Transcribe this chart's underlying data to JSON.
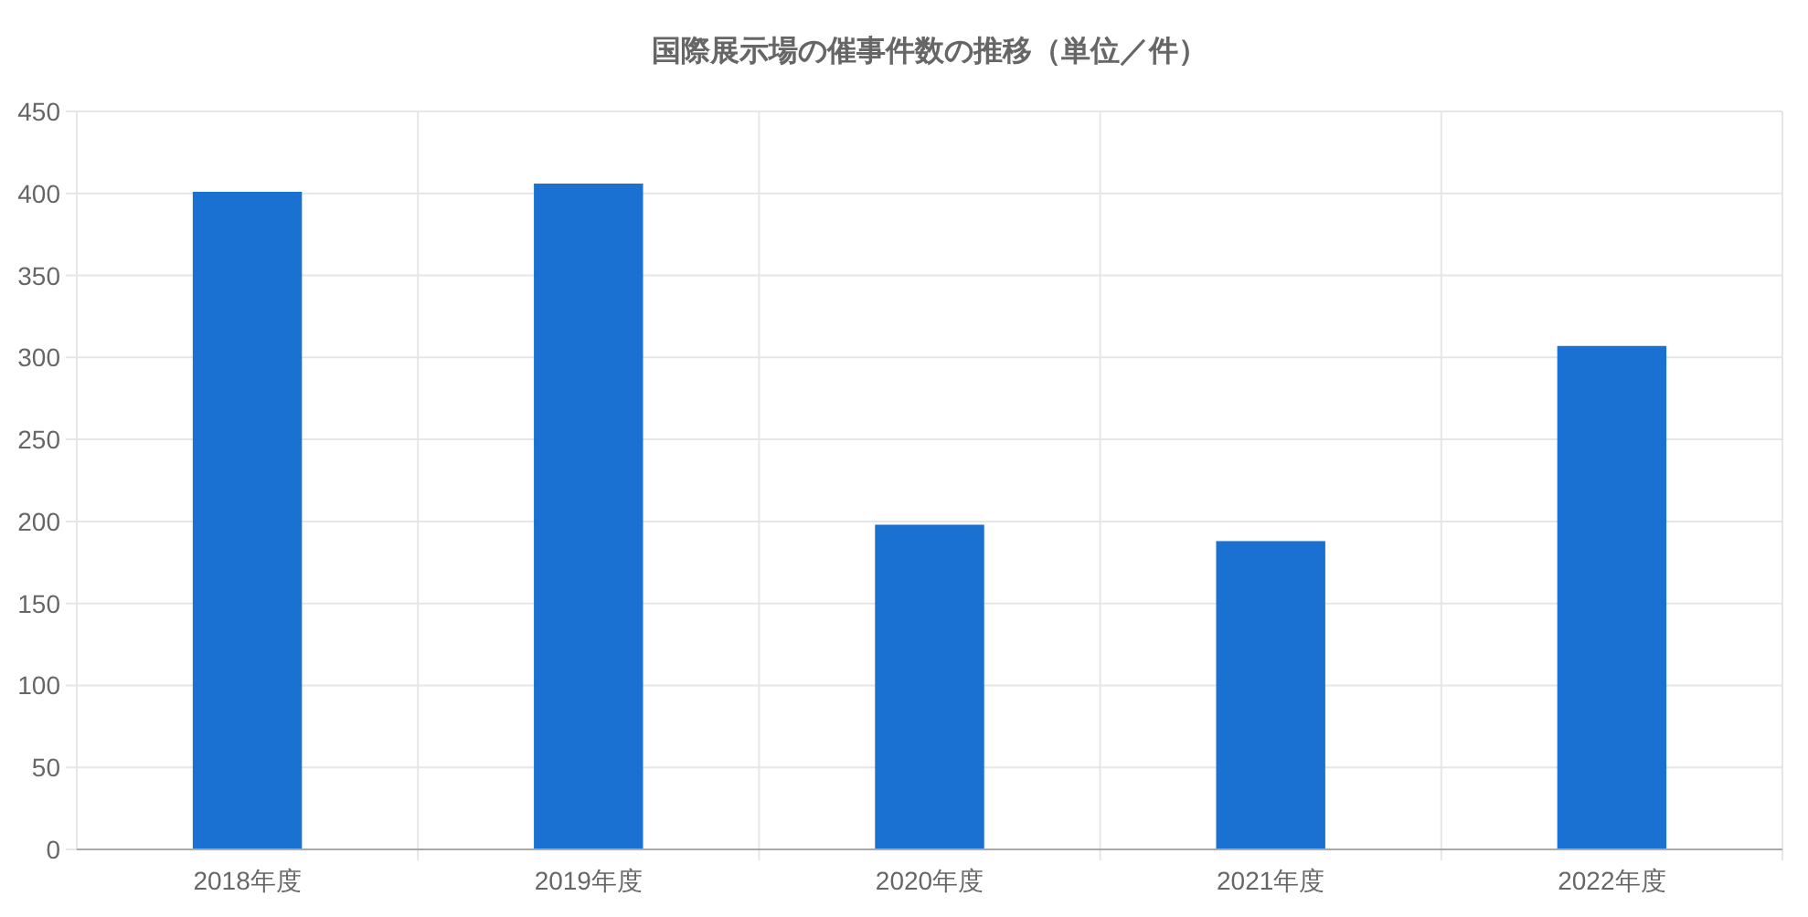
{
  "chart_data": {
    "type": "bar",
    "title": "国際展示場の催事件数の推移（単位／件）",
    "categories": [
      "2018年度",
      "2019年度",
      "2020年度",
      "2021年度",
      "2022年度"
    ],
    "values": [
      401,
      406,
      198,
      188,
      307
    ],
    "color": "#1a71d1",
    "ylim": [
      0,
      450
    ],
    "yticks": [
      0,
      50,
      100,
      150,
      200,
      250,
      300,
      350,
      400,
      450
    ],
    "grid": true
  }
}
